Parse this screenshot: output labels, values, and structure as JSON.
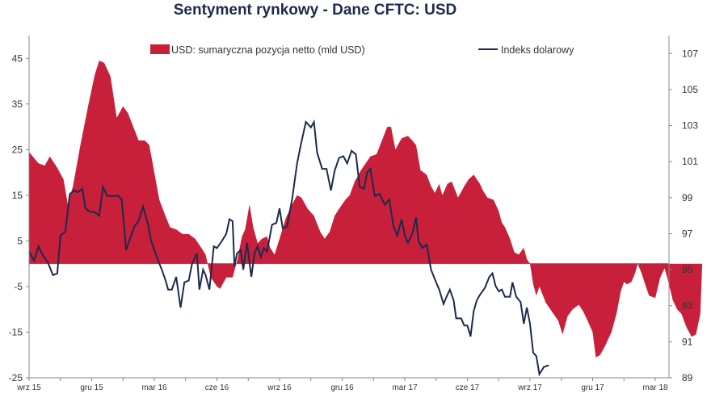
{
  "chart_data": {
    "type": "area",
    "title": "Sentyment rynkowy - Dane CFTC:  USD",
    "xlabel": "",
    "ylabel": "",
    "x_tick_labels": [
      "wrz 15",
      "gru 15",
      "mar 16",
      "cze 16",
      "wrz 16",
      "gru 16",
      "mar 17",
      "cze 17",
      "wrz 17",
      "gru 17",
      "mar 18"
    ],
    "y_left": {
      "ylim": [
        -25,
        50
      ],
      "ticks": [
        45,
        35,
        25,
        15,
        5,
        -5,
        -15,
        -25
      ]
    },
    "y_right": {
      "ylim": [
        89,
        108
      ],
      "ticks": [
        107,
        105,
        103,
        101,
        99,
        97,
        95,
        93,
        91,
        89
      ]
    },
    "grid": false,
    "legend_position": "top",
    "x_index": [
      0,
      0.5,
      1,
      1.5,
      2,
      2.5,
      3,
      3.5,
      4,
      4.5,
      5,
      5.5,
      6,
      6.5,
      7,
      7.5,
      8,
      8.5,
      9,
      9.5,
      10
    ],
    "series": [
      {
        "name": "USD: sumaryczna pozycja netto (mld USD)",
        "axis": "left",
        "kind": "area",
        "color": "#c8203a",
        "points": [
          [
            0.0,
            24.5
          ],
          [
            0.15,
            22
          ],
          [
            0.25,
            21.5
          ],
          [
            0.33,
            23.5
          ],
          [
            0.45,
            21
          ],
          [
            0.55,
            18.5
          ],
          [
            0.62,
            13
          ],
          [
            0.7,
            17
          ],
          [
            0.82,
            26
          ],
          [
            0.95,
            35
          ],
          [
            1.05,
            41.5
          ],
          [
            1.12,
            44.5
          ],
          [
            1.2,
            44
          ],
          [
            1.3,
            41
          ],
          [
            1.4,
            32
          ],
          [
            1.5,
            34.5
          ],
          [
            1.58,
            33
          ],
          [
            1.65,
            30.5
          ],
          [
            1.75,
            27
          ],
          [
            1.85,
            27
          ],
          [
            1.92,
            26
          ],
          [
            2.0,
            20
          ],
          [
            2.08,
            14
          ],
          [
            2.15,
            11.5
          ],
          [
            2.25,
            8
          ],
          [
            2.35,
            7.5
          ],
          [
            2.45,
            6.5
          ],
          [
            2.55,
            6.5
          ],
          [
            2.65,
            5.5
          ],
          [
            2.75,
            3.5
          ],
          [
            2.82,
            2
          ],
          [
            2.9,
            -3
          ],
          [
            3.0,
            -5
          ],
          [
            3.05,
            -5.5
          ],
          [
            3.15,
            -3
          ],
          [
            3.25,
            -3
          ],
          [
            3.32,
            0.5
          ],
          [
            3.4,
            6
          ],
          [
            3.45,
            7.5
          ],
          [
            3.52,
            13
          ],
          [
            3.58,
            8
          ],
          [
            3.65,
            4.5
          ],
          [
            3.72,
            5.5
          ],
          [
            3.8,
            6
          ],
          [
            3.85,
            3.5
          ],
          [
            3.92,
            2
          ],
          [
            4.0,
            5.5
          ],
          [
            4.1,
            10
          ],
          [
            4.2,
            13
          ],
          [
            4.28,
            15
          ],
          [
            4.35,
            14.5
          ],
          [
            4.45,
            12
          ],
          [
            4.55,
            10.5
          ],
          [
            4.65,
            7
          ],
          [
            4.72,
            5.5
          ],
          [
            4.8,
            7
          ],
          [
            4.88,
            10.5
          ],
          [
            4.95,
            12
          ],
          [
            5.05,
            14
          ],
          [
            5.12,
            15
          ],
          [
            5.2,
            18
          ],
          [
            5.3,
            20.5
          ],
          [
            5.4,
            22.5
          ],
          [
            5.45,
            23.5
          ],
          [
            5.55,
            24
          ],
          [
            5.62,
            26.5
          ],
          [
            5.72,
            30
          ],
          [
            5.78,
            30
          ],
          [
            5.85,
            25
          ],
          [
            5.95,
            27.5
          ],
          [
            6.05,
            28
          ],
          [
            6.12,
            27
          ],
          [
            6.18,
            26
          ],
          [
            6.25,
            20.5
          ],
          [
            6.35,
            19.5
          ],
          [
            6.42,
            17
          ],
          [
            6.48,
            15.5
          ],
          [
            6.55,
            17.5
          ],
          [
            6.6,
            15
          ],
          [
            6.68,
            17.5
          ],
          [
            6.75,
            18
          ],
          [
            6.85,
            14.5
          ],
          [
            6.95,
            17
          ],
          [
            7.02,
            18.5
          ],
          [
            7.1,
            19.5
          ],
          [
            7.2,
            17.5
          ],
          [
            7.25,
            16
          ],
          [
            7.32,
            14.5
          ],
          [
            7.42,
            14
          ],
          [
            7.5,
            11.5
          ],
          [
            7.55,
            9
          ],
          [
            7.6,
            8
          ],
          [
            7.68,
            5.5
          ],
          [
            7.75,
            2.5
          ],
          [
            7.82,
            2
          ],
          [
            7.9,
            3.5
          ],
          [
            7.95,
            1
          ],
          [
            8.0,
            0
          ],
          [
            8.05,
            -4.5
          ],
          [
            8.1,
            -7
          ],
          [
            8.15,
            -5
          ],
          [
            8.25,
            -8.5
          ],
          [
            8.35,
            -10.5
          ],
          [
            8.45,
            -12.5
          ],
          [
            8.52,
            -15.5
          ],
          [
            8.6,
            -11.5
          ],
          [
            8.68,
            -10
          ],
          [
            8.78,
            -9
          ],
          [
            8.85,
            -10.5
          ],
          [
            8.92,
            -12.5
          ],
          [
            9.0,
            -15
          ],
          [
            9.05,
            -20.5
          ],
          [
            9.12,
            -20
          ],
          [
            9.2,
            -18
          ],
          [
            9.3,
            -15
          ],
          [
            9.38,
            -11
          ],
          [
            9.45,
            -6
          ],
          [
            9.5,
            -4
          ],
          [
            9.55,
            -4.5
          ],
          [
            9.62,
            -4
          ],
          [
            9.68,
            -2
          ],
          [
            9.72,
            0
          ],
          [
            9.78,
            -2
          ],
          [
            9.85,
            -5
          ],
          [
            9.9,
            -7
          ],
          [
            10.0,
            -7.5
          ],
          [
            10.08,
            -3
          ],
          [
            10.15,
            -1
          ],
          [
            10.2,
            -3.5
          ],
          [
            10.28,
            -8
          ],
          [
            10.35,
            -10
          ],
          [
            10.42,
            -11
          ],
          [
            10.5,
            -14
          ],
          [
            10.58,
            -16
          ],
          [
            10.65,
            -15.5
          ],
          [
            10.72,
            -11
          ],
          [
            10.75,
            0
          ]
        ]
      },
      {
        "name": "Indeks dolarowy",
        "axis": "right",
        "kind": "line",
        "color": "#1c2a4d",
        "points": [
          [
            0.0,
            96.0
          ],
          [
            0.08,
            95.5
          ],
          [
            0.15,
            96.3
          ],
          [
            0.22,
            95.8
          ],
          [
            0.3,
            95.4
          ],
          [
            0.38,
            94.7
          ],
          [
            0.45,
            94.8
          ],
          [
            0.5,
            96.9
          ],
          [
            0.58,
            97.1
          ],
          [
            0.65,
            99.2
          ],
          [
            0.72,
            99.4
          ],
          [
            0.78,
            99.3
          ],
          [
            0.85,
            99.5
          ],
          [
            0.9,
            98.4
          ],
          [
            0.98,
            98.2
          ],
          [
            1.05,
            98.2
          ],
          [
            1.12,
            98.0
          ],
          [
            1.18,
            99.6
          ],
          [
            1.25,
            99.1
          ],
          [
            1.33,
            99.1
          ],
          [
            1.42,
            99.1
          ],
          [
            1.48,
            98.9
          ],
          [
            1.55,
            96.1
          ],
          [
            1.6,
            96.6
          ],
          [
            1.68,
            97.4
          ],
          [
            1.75,
            97.7
          ],
          [
            1.82,
            98.5
          ],
          [
            1.9,
            97.5
          ],
          [
            1.95,
            96.6
          ],
          [
            2.05,
            95.6
          ],
          [
            2.12,
            95.0
          ],
          [
            2.18,
            94.4
          ],
          [
            2.22,
            93.9
          ],
          [
            2.28,
            93.9
          ],
          [
            2.35,
            94.6
          ],
          [
            2.42,
            92.9
          ],
          [
            2.48,
            94.3
          ],
          [
            2.55,
            94.4
          ],
          [
            2.6,
            95.3
          ],
          [
            2.68,
            95.9
          ],
          [
            2.72,
            93.9
          ],
          [
            2.78,
            95.0
          ],
          [
            2.82,
            94.7
          ],
          [
            2.88,
            93.9
          ],
          [
            2.95,
            96.3
          ],
          [
            3.0,
            96.2
          ],
          [
            3.08,
            96.6
          ],
          [
            3.15,
            97.0
          ],
          [
            3.2,
            97.8
          ],
          [
            3.25,
            97.7
          ],
          [
            3.28,
            95.2
          ],
          [
            3.32,
            95.9
          ],
          [
            3.38,
            96.1
          ],
          [
            3.42,
            95.0
          ],
          [
            3.48,
            96.5
          ],
          [
            3.55,
            94.6
          ],
          [
            3.6,
            95.9
          ],
          [
            3.65,
            96.3
          ],
          [
            3.7,
            95.7
          ],
          [
            3.75,
            96.2
          ],
          [
            3.8,
            96.0
          ],
          [
            3.88,
            97.5
          ],
          [
            3.95,
            97.6
          ],
          [
            4.0,
            98.4
          ],
          [
            4.05,
            97.3
          ],
          [
            4.12,
            97.4
          ],
          [
            4.2,
            98.9
          ],
          [
            4.28,
            100.9
          ],
          [
            4.35,
            102.1
          ],
          [
            4.42,
            103.2
          ],
          [
            4.5,
            102.9
          ],
          [
            4.55,
            103.2
          ],
          [
            4.6,
            101.5
          ],
          [
            4.68,
            100.6
          ],
          [
            4.75,
            100.6
          ],
          [
            4.82,
            99.4
          ],
          [
            4.88,
            100.5
          ],
          [
            4.95,
            101.2
          ],
          [
            5.02,
            101.3
          ],
          [
            5.08,
            100.9
          ],
          [
            5.15,
            101.6
          ],
          [
            5.22,
            101.4
          ],
          [
            5.28,
            99.6
          ],
          [
            5.35,
            99.5
          ],
          [
            5.4,
            100.4
          ],
          [
            5.45,
            100.6
          ],
          [
            5.52,
            99.1
          ],
          [
            5.6,
            99.2
          ],
          [
            5.68,
            98.6
          ],
          [
            5.75,
            98.9
          ],
          [
            5.82,
            97.4
          ],
          [
            5.88,
            96.9
          ],
          [
            5.95,
            97.8
          ],
          [
            6.0,
            96.9
          ],
          [
            6.05,
            96.5
          ],
          [
            6.12,
            97.0
          ],
          [
            6.18,
            97.9
          ],
          [
            6.22,
            96.6
          ],
          [
            6.28,
            96.2
          ],
          [
            6.35,
            96.4
          ],
          [
            6.42,
            95.0
          ],
          [
            6.5,
            94.3
          ],
          [
            6.55,
            93.9
          ],
          [
            6.62,
            93.1
          ],
          [
            6.68,
            93.6
          ],
          [
            6.72,
            93.9
          ],
          [
            6.78,
            93.3
          ],
          [
            6.82,
            92.3
          ],
          [
            6.9,
            92.3
          ],
          [
            6.95,
            91.9
          ],
          [
            7.0,
            91.9
          ],
          [
            7.05,
            91.3
          ],
          [
            7.1,
            92.7
          ],
          [
            7.15,
            93.3
          ],
          [
            7.2,
            93.6
          ],
          [
            7.28,
            94.0
          ],
          [
            7.35,
            94.6
          ],
          [
            7.4,
            94.8
          ],
          [
            7.45,
            94.1
          ],
          [
            7.5,
            93.8
          ],
          [
            7.55,
            93.9
          ],
          [
            7.6,
            93.5
          ],
          [
            7.68,
            93.5
          ],
          [
            7.72,
            94.3
          ],
          [
            7.78,
            93.5
          ],
          [
            7.85,
            93.2
          ],
          [
            7.9,
            92.0
          ],
          [
            7.95,
            92.9
          ],
          [
            8.0,
            92.0
          ],
          [
            8.05,
            90.4
          ],
          [
            8.1,
            90.2
          ],
          [
            8.15,
            89.2
          ],
          [
            8.22,
            89.6
          ],
          [
            8.3,
            89.7
          ]
        ]
      }
    ]
  }
}
